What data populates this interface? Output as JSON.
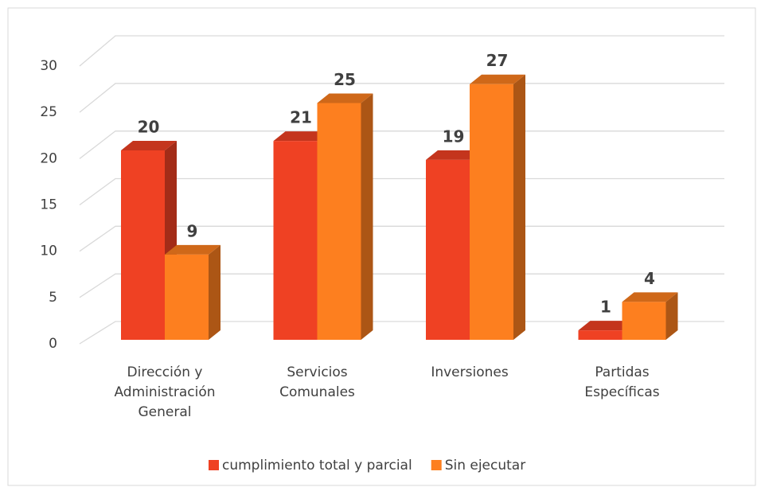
{
  "chart_data": {
    "type": "bar3d",
    "categories": [
      "Dirección y\nAdministración\nGeneral",
      "Servicios\nComunales",
      "Inversiones",
      "Partidas\nEspecíficas"
    ],
    "series": [
      {
        "name": "cumplimiento total y parcial",
        "color": "#ef4123",
        "values": [
          20,
          21,
          19,
          1
        ]
      },
      {
        "name": "Sin ejecutar",
        "color": "#fd7f1f",
        "values": [
          9,
          25,
          27,
          4
        ]
      }
    ],
    "ylim": [
      0,
      30
    ],
    "yticks": [
      0,
      5,
      10,
      15,
      20,
      25,
      30
    ],
    "grid": true,
    "legend": "bottom"
  }
}
